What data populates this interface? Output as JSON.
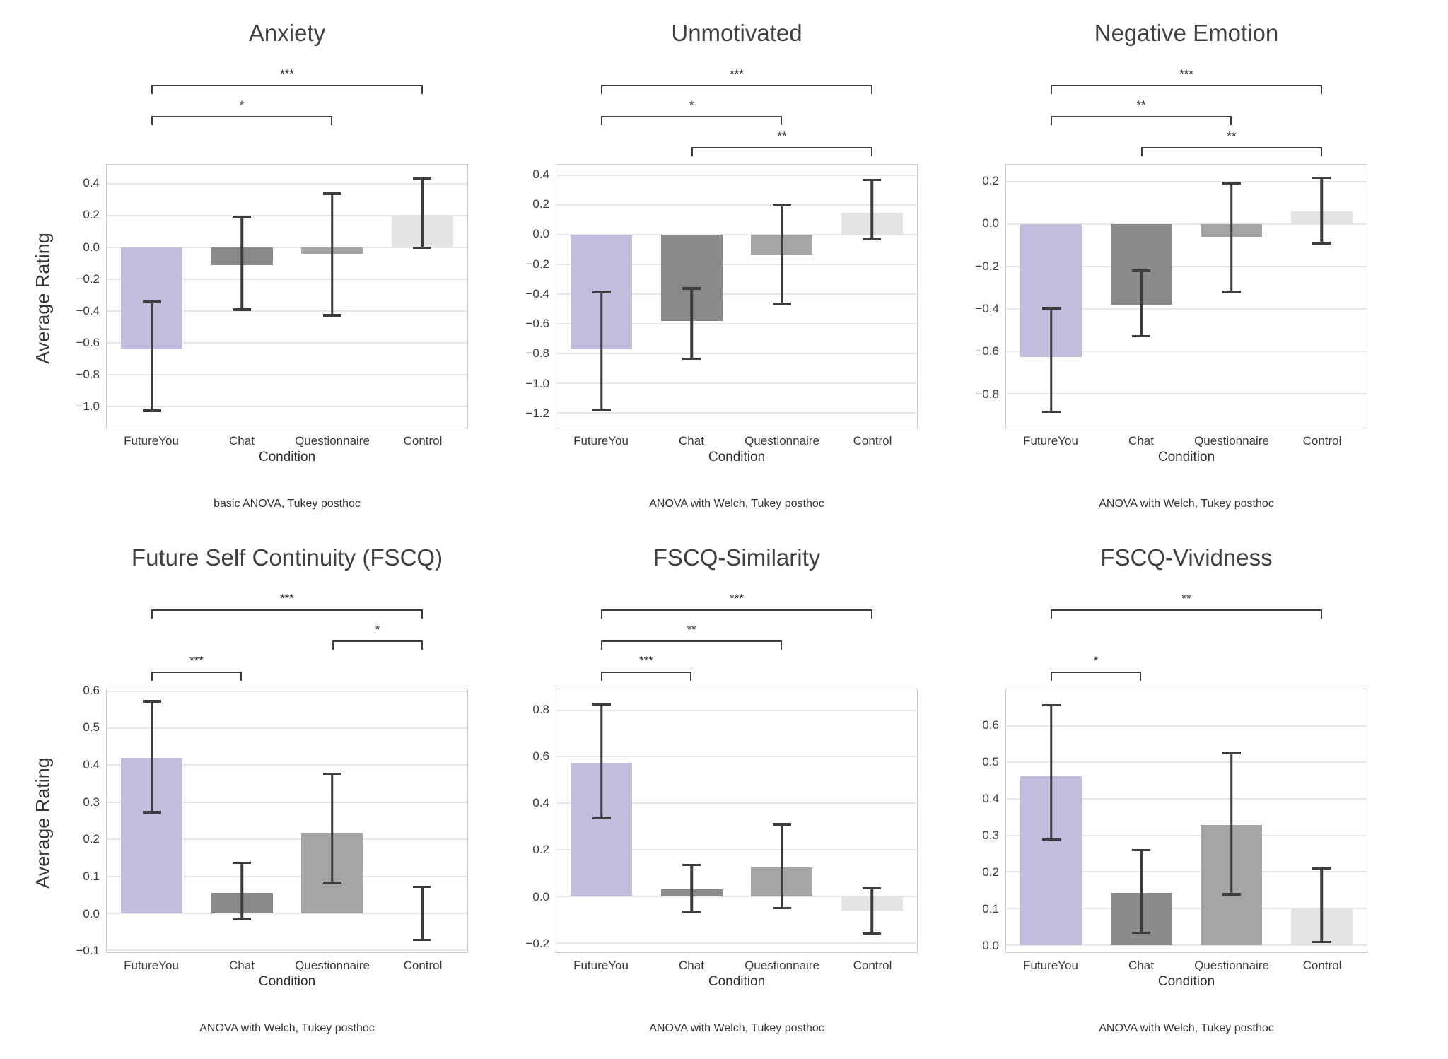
{
  "page": {
    "background": "#ffffff"
  },
  "shared": {
    "ylabel": "Average Rating",
    "xlabel": "Condition",
    "categories": [
      "FutureYou",
      "Chat",
      "Questionnaire",
      "Control"
    ],
    "bar_colors": [
      "#c3bcdd",
      "#8a8a8a",
      "#a5a5a5",
      "#e4e4e4"
    ],
    "error_color": "#3d3d3d",
    "grid_color": "#e8e8e8",
    "border_color": "#cccccc",
    "title_color": "#404040"
  },
  "chart_data": [
    {
      "type": "bar",
      "title": "Anxiety",
      "xlabel": "Condition",
      "ylabel": "Average Rating",
      "categories": [
        "FutureYou",
        "Chat",
        "Questionnaire",
        "Control"
      ],
      "values": [
        -0.64,
        -0.11,
        -0.04,
        0.2
      ],
      "error_low": [
        -1.035,
        -0.4,
        -0.435,
        -0.01
      ],
      "error_high": [
        -0.335,
        0.2,
        0.345,
        0.44
      ],
      "yticks": [
        0.4,
        0.2,
        0.0,
        -0.2,
        -0.4,
        -0.6,
        -0.8,
        -1.0
      ],
      "ylim": [
        -1.135,
        0.52
      ],
      "grid": true,
      "brackets": [
        {
          "from": 0,
          "to": 3,
          "label": "***",
          "level": 1
        },
        {
          "from": 0,
          "to": 2,
          "label": "*",
          "level": 2
        }
      ],
      "caption": "basic ANOVA, Tukey posthoc"
    },
    {
      "type": "bar",
      "title": "Unmotivated",
      "xlabel": "Condition",
      "ylabel": "Average Rating",
      "categories": [
        "FutureYou",
        "Chat",
        "Questionnaire",
        "Control"
      ],
      "values": [
        -0.77,
        -0.58,
        -0.14,
        0.145
      ],
      "error_low": [
        -1.19,
        -0.845,
        -0.475,
        -0.04
      ],
      "error_high": [
        -0.38,
        -0.355,
        0.205,
        0.375
      ],
      "yticks": [
        0.4,
        0.2,
        0.0,
        -0.2,
        -0.4,
        -0.6,
        -0.8,
        -1.0,
        -1.2
      ],
      "ylim": [
        -1.3,
        0.47
      ],
      "grid": true,
      "brackets": [
        {
          "from": 0,
          "to": 3,
          "label": "***",
          "level": 1
        },
        {
          "from": 0,
          "to": 2,
          "label": "*",
          "level": 2
        },
        {
          "from": 1,
          "to": 3,
          "label": "**",
          "level": 3
        }
      ],
      "caption": "ANOVA with Welch, Tukey posthoc"
    },
    {
      "type": "bar",
      "title": "Negative Emotion",
      "xlabel": "Condition",
      "ylabel": "Average Rating",
      "categories": [
        "FutureYou",
        "Chat",
        "Questionnaire",
        "Control"
      ],
      "values": [
        -0.625,
        -0.38,
        -0.06,
        0.06
      ],
      "error_low": [
        -0.89,
        -0.535,
        -0.325,
        -0.095
      ],
      "error_high": [
        -0.39,
        -0.215,
        0.2,
        0.225
      ],
      "yticks": [
        0.2,
        0.0,
        -0.2,
        -0.4,
        -0.6,
        -0.8
      ],
      "ylim": [
        -0.96,
        0.28
      ],
      "grid": true,
      "brackets": [
        {
          "from": 0,
          "to": 3,
          "label": "***",
          "level": 1
        },
        {
          "from": 0,
          "to": 2,
          "label": "**",
          "level": 2
        },
        {
          "from": 1,
          "to": 3,
          "label": "**",
          "level": 3
        }
      ],
      "caption": "ANOVA with Welch, Tukey posthoc"
    },
    {
      "type": "bar",
      "title": "Future Self Continuity (FSCQ)",
      "xlabel": "Condition",
      "ylabel": "Average Rating",
      "categories": [
        "FutureYou",
        "Chat",
        "Questionnaire",
        "Control"
      ],
      "values": [
        0.42,
        0.055,
        0.215,
        0.002
      ],
      "error_low": [
        0.27,
        -0.02,
        0.08,
        -0.075
      ],
      "error_high": [
        0.576,
        0.14,
        0.38,
        0.075
      ],
      "yticks": [
        0.6,
        0.5,
        0.4,
        0.3,
        0.2,
        0.1,
        0.0,
        -0.1
      ],
      "ylim": [
        -0.105,
        0.605
      ],
      "grid": true,
      "brackets": [
        {
          "from": 0,
          "to": 3,
          "label": "***",
          "level": 1
        },
        {
          "from": 2,
          "to": 3,
          "label": "*",
          "level": 2
        },
        {
          "from": 0,
          "to": 1,
          "label": "***",
          "level": 3
        }
      ],
      "caption": "ANOVA with Welch, Tukey posthoc"
    },
    {
      "type": "bar",
      "title": "FSCQ-Similarity",
      "xlabel": "Condition",
      "ylabel": "Average Rating",
      "categories": [
        "FutureYou",
        "Chat",
        "Questionnaire",
        "Control"
      ],
      "values": [
        0.575,
        0.03,
        0.125,
        -0.06
      ],
      "error_low": [
        0.33,
        -0.07,
        -0.055,
        -0.165
      ],
      "error_high": [
        0.83,
        0.14,
        0.315,
        0.04
      ],
      "yticks": [
        0.8,
        0.6,
        0.4,
        0.2,
        0.0,
        -0.2
      ],
      "ylim": [
        -0.24,
        0.89
      ],
      "grid": true,
      "brackets": [
        {
          "from": 0,
          "to": 3,
          "label": "***",
          "level": 1
        },
        {
          "from": 0,
          "to": 2,
          "label": "**",
          "level": 2
        },
        {
          "from": 0,
          "to": 1,
          "label": "***",
          "level": 3
        }
      ],
      "caption": "ANOVA with Welch, Tukey posthoc"
    },
    {
      "type": "bar",
      "title": "FSCQ-Vividness",
      "xlabel": "Condition",
      "ylabel": "Average Rating",
      "categories": [
        "FutureYou",
        "Chat",
        "Questionnaire",
        "Control"
      ],
      "values": [
        0.462,
        0.143,
        0.328,
        0.1
      ],
      "error_low": [
        0.285,
        0.03,
        0.135,
        0.005
      ],
      "error_high": [
        0.66,
        0.263,
        0.528,
        0.213
      ],
      "yticks": [
        0.6,
        0.5,
        0.4,
        0.3,
        0.2,
        0.1,
        0.0
      ],
      "ylim": [
        -0.02,
        0.7
      ],
      "grid": true,
      "brackets": [
        {
          "from": 0,
          "to": 3,
          "label": "**",
          "level": 1
        },
        {
          "from": 0,
          "to": 1,
          "label": "*",
          "level": 3
        }
      ],
      "caption": "ANOVA with Welch, Tukey posthoc"
    }
  ]
}
